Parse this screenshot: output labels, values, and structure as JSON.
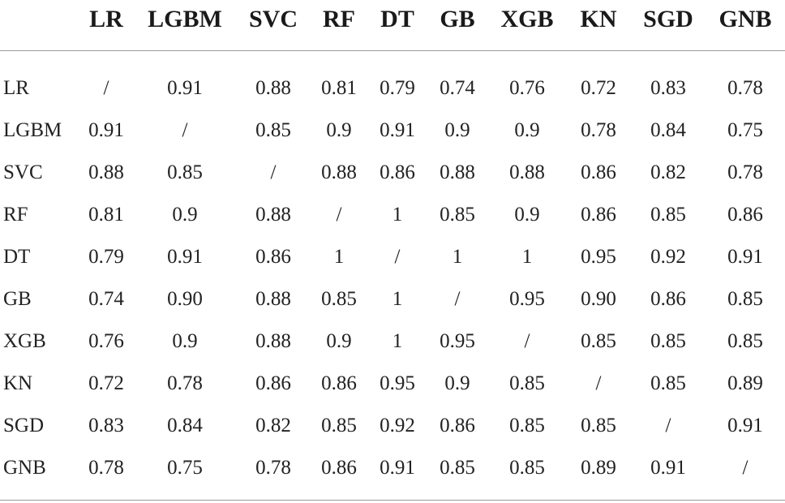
{
  "table": {
    "corner": "",
    "columns": [
      "LR",
      "LGBM",
      "SVC",
      "RF",
      "DT",
      "GB",
      "XGB",
      "KN",
      "SGD",
      "GNB"
    ],
    "rows": [
      {
        "label": "LR",
        "cells": [
          "/",
          "0.91",
          "0.88",
          "0.81",
          "0.79",
          "0.74",
          "0.76",
          "0.72",
          "0.83",
          "0.78"
        ]
      },
      {
        "label": "LGBM",
        "cells": [
          "0.91",
          "/",
          "0.85",
          "0.9",
          "0.91",
          "0.9",
          "0.9",
          "0.78",
          "0.84",
          "0.75"
        ]
      },
      {
        "label": "SVC",
        "cells": [
          "0.88",
          "0.85",
          "/",
          "0.88",
          "0.86",
          "0.88",
          "0.88",
          "0.86",
          "0.82",
          "0.78"
        ]
      },
      {
        "label": "RF",
        "cells": [
          "0.81",
          "0.9",
          "0.88",
          "/",
          "1",
          "0.85",
          "0.9",
          "0.86",
          "0.85",
          "0.86"
        ]
      },
      {
        "label": "DT",
        "cells": [
          "0.79",
          "0.91",
          "0.86",
          "1",
          "/",
          "1",
          "1",
          "0.95",
          "0.92",
          "0.91"
        ]
      },
      {
        "label": "GB",
        "cells": [
          "0.74",
          "0.90",
          "0.88",
          "0.85",
          "1",
          "/",
          "0.95",
          "0.90",
          "0.86",
          "0.85"
        ]
      },
      {
        "label": "XGB",
        "cells": [
          "0.76",
          "0.9",
          "0.88",
          "0.9",
          "1",
          "0.95",
          "/",
          "0.85",
          "0.85",
          "0.85"
        ]
      },
      {
        "label": "KN",
        "cells": [
          "0.72",
          "0.78",
          "0.86",
          "0.86",
          "0.95",
          "0.9",
          "0.85",
          "/",
          "0.85",
          "0.89"
        ]
      },
      {
        "label": "SGD",
        "cells": [
          "0.83",
          "0.84",
          "0.82",
          "0.85",
          "0.92",
          "0.86",
          "0.85",
          "0.85",
          "/",
          "0.91"
        ]
      },
      {
        "label": "GNB",
        "cells": [
          "0.78",
          "0.75",
          "0.78",
          "0.86",
          "0.91",
          "0.85",
          "0.85",
          "0.89",
          "0.91",
          "/"
        ]
      }
    ]
  }
}
